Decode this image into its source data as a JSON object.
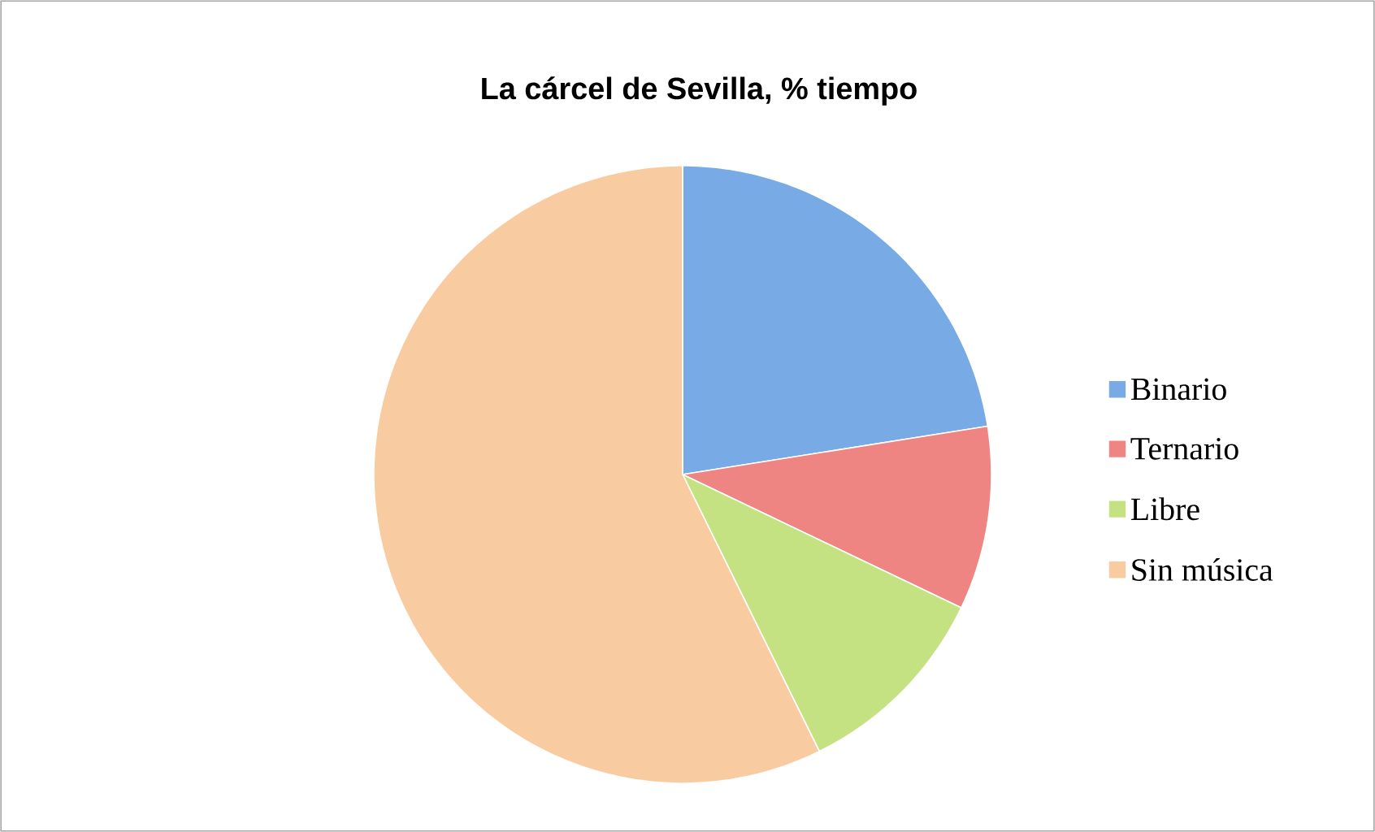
{
  "chart_data": {
    "type": "pie",
    "title": "La cárcel de Sevilla, % tiempo",
    "categories": [
      "Binario",
      "Ternario",
      "Libre",
      "Sin música"
    ],
    "values": [
      22.5,
      9.6,
      10.6,
      57.3
    ],
    "colors": [
      "#78aae6",
      "#ee8583",
      "#c5e283",
      "#f9cba0"
    ],
    "legend": "right"
  }
}
